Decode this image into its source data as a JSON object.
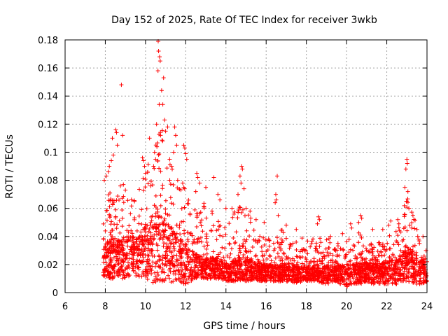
{
  "chart_data": {
    "type": "scatter",
    "title": "Day 152 of 2025, Rate Of TEC Index for receiver 3wkb",
    "xlabel": "GPS time / hours",
    "ylabel": "ROTI / TECUs",
    "xlim": [
      6,
      24
    ],
    "ylim": [
      0,
      0.18
    ],
    "xticks": [
      6,
      8,
      10,
      12,
      14,
      16,
      18,
      20,
      22,
      24
    ],
    "yticks": [
      0,
      0.02,
      0.04,
      0.06,
      0.08,
      0.1,
      0.12,
      0.14,
      0.16,
      0.18
    ],
    "xtick_labels": [
      "6",
      "8",
      "10",
      "12",
      "14",
      "16",
      "18",
      "20",
      "22",
      "24"
    ],
    "ytick_labels": [
      "0",
      "0.02",
      "0.04",
      "0.06",
      "0.08",
      "0.1",
      "0.12",
      "0.14",
      "0.16",
      "0.18"
    ],
    "grid": true,
    "marker": "+",
    "color": "#ff0000",
    "series": [
      {
        "name": "ROTI",
        "envelope_hours": [
          7.9,
          8.25,
          8.5,
          9.0,
          9.5,
          10.0,
          10.4,
          10.6,
          10.8,
          11.2,
          11.5,
          12.0,
          12.5,
          13.0,
          13.5,
          14.0,
          14.5,
          14.8,
          15.2,
          15.6,
          16.0,
          16.6,
          17.0,
          17.5,
          18.0,
          18.5,
          19.0,
          19.5,
          20.0,
          20.5,
          21.0,
          21.5,
          22.0,
          22.5,
          22.8,
          23.0,
          23.3,
          23.6,
          24.0
        ],
        "envelope_low": [
          0.012,
          0.01,
          0.01,
          0.01,
          0.01,
          0.01,
          0.006,
          0.008,
          0.008,
          0.007,
          0.007,
          0.006,
          0.01,
          0.01,
          0.01,
          0.008,
          0.008,
          0.008,
          0.008,
          0.008,
          0.008,
          0.008,
          0.008,
          0.007,
          0.008,
          0.008,
          0.006,
          0.007,
          0.004,
          0.006,
          0.006,
          0.006,
          0.006,
          0.006,
          0.008,
          0.008,
          0.006,
          0.006,
          0.006
        ],
        "envelope_high": [
          0.055,
          0.08,
          0.07,
          0.07,
          0.065,
          0.09,
          0.1,
          0.14,
          0.12,
          0.1,
          0.08,
          0.075,
          0.06,
          0.065,
          0.055,
          0.045,
          0.06,
          0.075,
          0.055,
          0.045,
          0.04,
          0.055,
          0.04,
          0.04,
          0.04,
          0.04,
          0.04,
          0.035,
          0.04,
          0.045,
          0.035,
          0.035,
          0.04,
          0.045,
          0.06,
          0.07,
          0.06,
          0.04,
          0.03
        ],
        "envelope_typical": [
          0.025,
          0.03,
          0.028,
          0.03,
          0.03,
          0.035,
          0.04,
          0.045,
          0.04,
          0.035,
          0.03,
          0.025,
          0.022,
          0.02,
          0.02,
          0.017,
          0.018,
          0.02,
          0.018,
          0.017,
          0.016,
          0.016,
          0.015,
          0.015,
          0.015,
          0.015,
          0.015,
          0.015,
          0.015,
          0.016,
          0.016,
          0.016,
          0.017,
          0.018,
          0.022,
          0.025,
          0.022,
          0.018,
          0.016
        ],
        "points": [
          [
            10.63,
            0.179
          ],
          [
            10.65,
            0.172
          ],
          [
            10.7,
            0.168
          ],
          [
            10.73,
            0.165
          ],
          [
            10.62,
            0.158
          ],
          [
            10.9,
            0.153
          ],
          [
            10.8,
            0.144
          ],
          [
            10.86,
            0.134
          ],
          [
            10.68,
            0.134
          ],
          [
            10.55,
            0.12
          ],
          [
            10.95,
            0.123
          ],
          [
            11.0,
            0.115
          ],
          [
            10.75,
            0.112
          ],
          [
            10.85,
            0.108
          ],
          [
            11.1,
            0.118
          ],
          [
            11.45,
            0.118
          ],
          [
            11.5,
            0.112
          ],
          [
            11.55,
            0.105
          ],
          [
            11.4,
            0.1
          ],
          [
            11.2,
            0.095
          ],
          [
            8.52,
            0.116
          ],
          [
            8.56,
            0.114
          ],
          [
            8.35,
            0.11
          ],
          [
            8.4,
            0.098
          ],
          [
            8.3,
            0.094
          ],
          [
            8.2,
            0.09
          ],
          [
            8.15,
            0.086
          ],
          [
            8.05,
            0.083
          ],
          [
            7.95,
            0.08
          ],
          [
            8.6,
            0.105
          ],
          [
            8.8,
            0.148
          ],
          [
            8.86,
            0.112
          ],
          [
            8.75,
            0.076
          ],
          [
            8.9,
            0.077
          ],
          [
            9.0,
            0.073
          ],
          [
            9.85,
            0.096
          ],
          [
            9.9,
            0.094
          ],
          [
            9.95,
            0.09
          ],
          [
            10.0,
            0.085
          ],
          [
            10.2,
            0.11
          ],
          [
            10.45,
            0.1
          ],
          [
            10.5,
            0.095
          ],
          [
            10.4,
            0.09
          ],
          [
            11.3,
            0.09
          ],
          [
            11.6,
            0.08
          ],
          [
            11.9,
            0.105
          ],
          [
            11.95,
            0.103
          ],
          [
            12.0,
            0.099
          ],
          [
            12.05,
            0.095
          ],
          [
            11.85,
            0.078
          ],
          [
            12.55,
            0.085
          ],
          [
            12.6,
            0.082
          ],
          [
            12.7,
            0.078
          ],
          [
            12.5,
            0.072
          ],
          [
            13.0,
            0.075
          ],
          [
            13.4,
            0.082
          ],
          [
            13.6,
            0.07
          ],
          [
            13.7,
            0.066
          ],
          [
            14.0,
            0.06
          ],
          [
            14.3,
            0.06
          ],
          [
            14.78,
            0.09
          ],
          [
            14.82,
            0.088
          ],
          [
            14.7,
            0.083
          ],
          [
            14.75,
            0.078
          ],
          [
            14.9,
            0.074
          ],
          [
            14.6,
            0.07
          ],
          [
            15.0,
            0.06
          ],
          [
            15.2,
            0.058
          ],
          [
            15.5,
            0.052
          ],
          [
            15.9,
            0.05
          ],
          [
            16.55,
            0.083
          ],
          [
            16.48,
            0.07
          ],
          [
            16.5,
            0.066
          ],
          [
            16.45,
            0.064
          ],
          [
            16.6,
            0.055
          ],
          [
            17.0,
            0.048
          ],
          [
            17.5,
            0.045
          ],
          [
            18.6,
            0.054
          ],
          [
            18.65,
            0.052
          ],
          [
            18.55,
            0.049
          ],
          [
            19.2,
            0.04
          ],
          [
            19.8,
            0.042
          ],
          [
            20.2,
            0.049
          ],
          [
            20.25,
            0.046
          ],
          [
            20.7,
            0.055
          ],
          [
            20.75,
            0.053
          ],
          [
            20.6,
            0.05
          ],
          [
            21.3,
            0.045
          ],
          [
            21.8,
            0.045
          ],
          [
            22.1,
            0.048
          ],
          [
            22.2,
            0.051
          ],
          [
            22.55,
            0.052
          ],
          [
            22.6,
            0.049
          ],
          [
            23.0,
            0.095
          ],
          [
            23.02,
            0.092
          ],
          [
            22.95,
            0.088
          ],
          [
            22.9,
            0.075
          ],
          [
            23.05,
            0.072
          ],
          [
            22.98,
            0.065
          ],
          [
            23.1,
            0.06
          ],
          [
            23.3,
            0.055
          ],
          [
            23.5,
            0.045
          ],
          [
            23.8,
            0.04
          ],
          [
            23.95,
            0.03
          ],
          [
            24.0,
            0.022
          ]
        ]
      }
    ]
  }
}
